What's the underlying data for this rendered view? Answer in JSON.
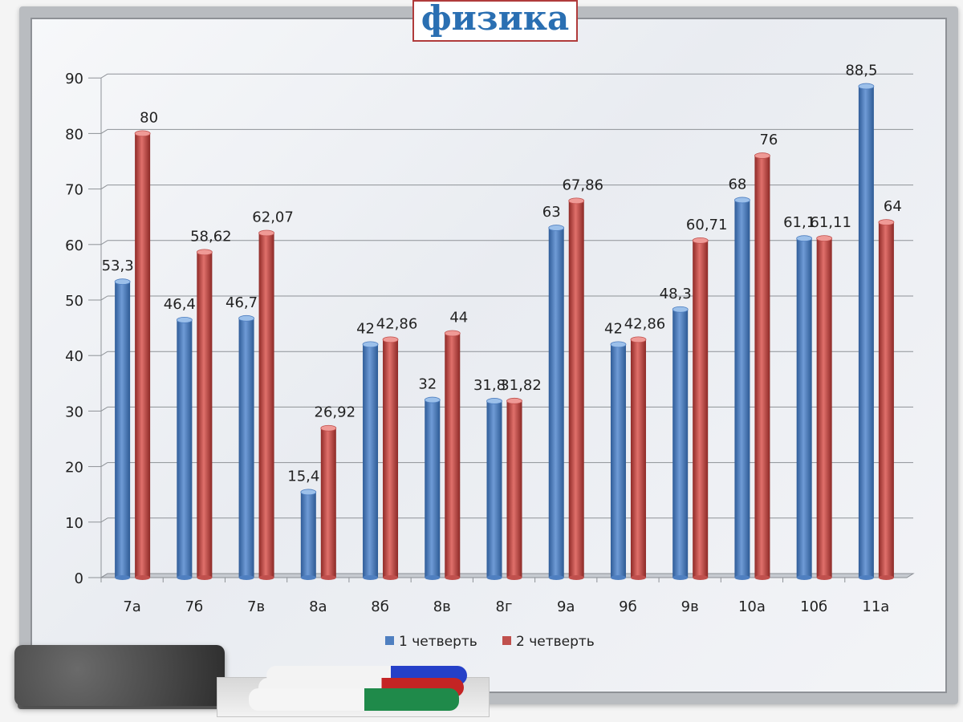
{
  "title": "физика",
  "chart_data": {
    "type": "bar",
    "categories": [
      "7а",
      "7б",
      "7в",
      "8а",
      "8б",
      "8в",
      "8г",
      "9а",
      "9б",
      "9в",
      "10а",
      "10б",
      "11а"
    ],
    "series": [
      {
        "name": "1 четверть",
        "color": "#4f7fc0",
        "values": [
          53.3,
          46.4,
          46.7,
          15.4,
          42,
          32,
          31.8,
          63,
          42,
          48.3,
          68,
          61.1,
          88.5
        ],
        "labels": [
          "53,3",
          "46,4",
          "46,7",
          "15,4",
          "42",
          "32",
          "31,8",
          "63",
          "42",
          "48,3",
          "68",
          "61,1",
          "88,5"
        ]
      },
      {
        "name": "2 четверть",
        "color": "#c0504d",
        "values": [
          80,
          58.62,
          62.07,
          26.92,
          42.86,
          44,
          31.82,
          67.86,
          42.86,
          60.71,
          76,
          61.11,
          64
        ],
        "labels": [
          "80",
          "58,62",
          "62,07",
          "26,92",
          "42,86",
          "44",
          "31,82",
          "67,86",
          "42,86",
          "60,71",
          "76",
          "61,11",
          "64"
        ]
      }
    ],
    "yticks": [
      "0",
      "10",
      "20",
      "30",
      "40",
      "50",
      "60",
      "70",
      "80",
      "90"
    ],
    "ylim": [
      0,
      90
    ],
    "grid": true,
    "legend": "bottom"
  }
}
